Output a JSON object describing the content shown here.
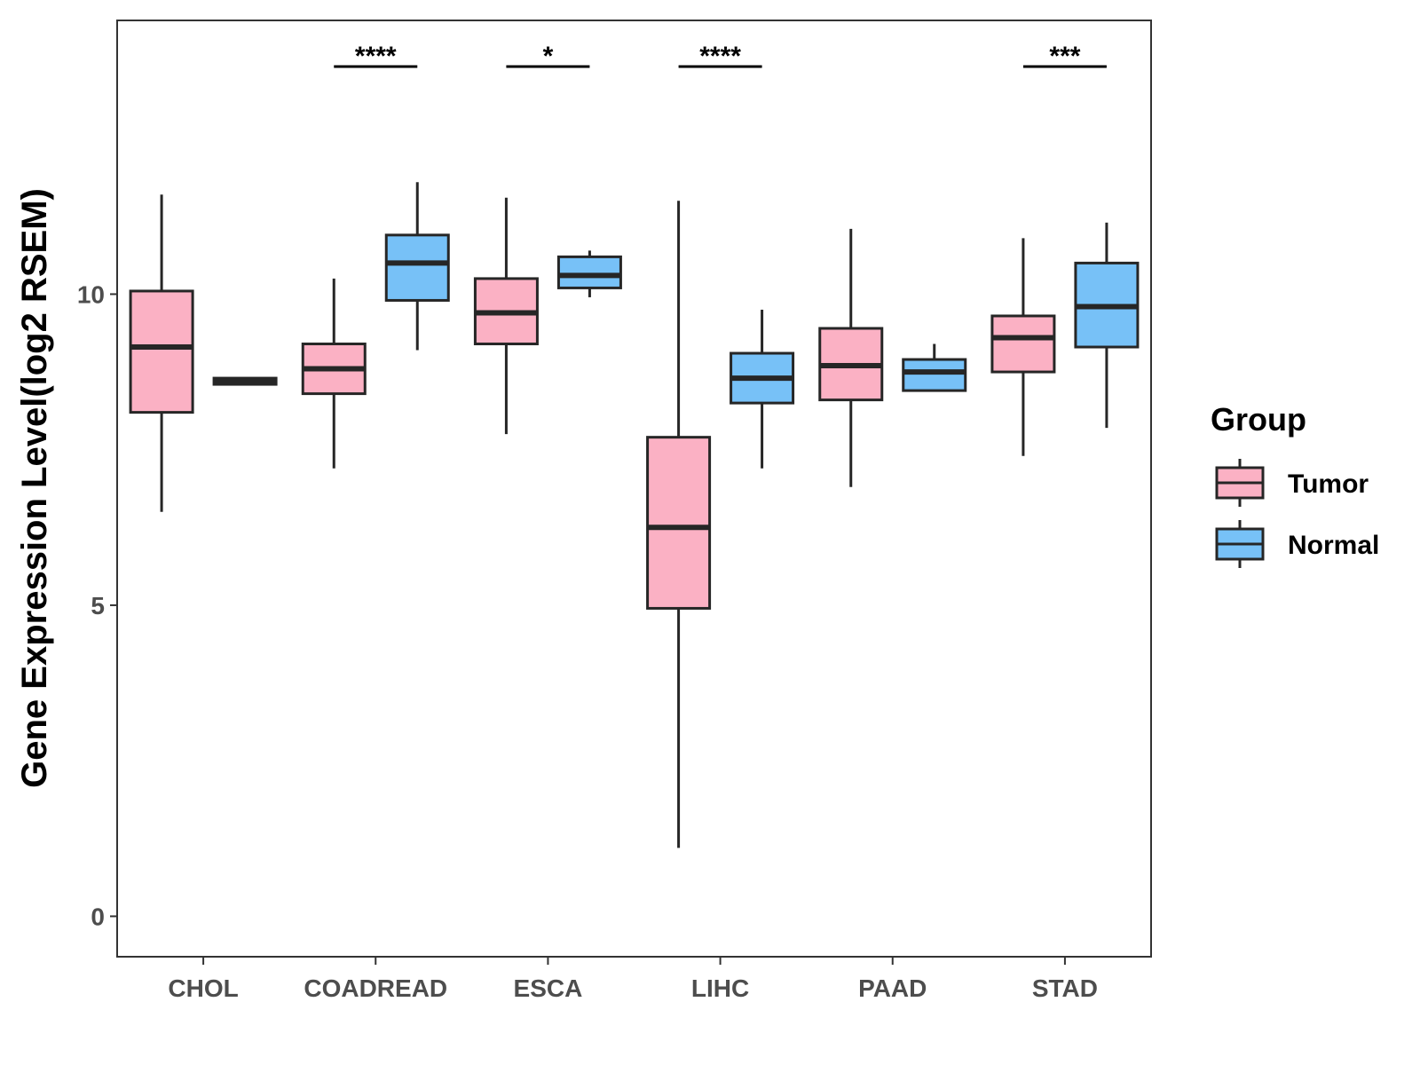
{
  "chart_data": {
    "type": "boxplot",
    "ylabel": "Gene Expression Level(log2 RSEM)",
    "xlabel": "",
    "ylim": [
      -0.65,
      14.4
    ],
    "yticks": [
      0,
      5,
      10
    ],
    "categories": [
      "CHOL",
      "COADREAD",
      "ESCA",
      "LIHC",
      "PAAD",
      "STAD"
    ],
    "legend": {
      "title": "Group",
      "position": "right",
      "items": [
        {
          "name": "Tumor",
          "color": "#FBB1C4"
        },
        {
          "name": "Normal",
          "color": "#77C1F7"
        }
      ]
    },
    "series": [
      {
        "name": "Tumor",
        "color": "#FBB1C4",
        "boxes": [
          {
            "category": "CHOL",
            "min": 6.5,
            "q1": 8.1,
            "median": 9.15,
            "q3": 10.05,
            "max": 11.6
          },
          {
            "category": "COADREAD",
            "min": 7.2,
            "q1": 8.4,
            "median": 8.8,
            "q3": 9.2,
            "max": 10.25
          },
          {
            "category": "ESCA",
            "min": 7.75,
            "q1": 9.2,
            "median": 9.7,
            "q3": 10.25,
            "max": 11.55
          },
          {
            "category": "LIHC",
            "min": 1.1,
            "q1": 4.95,
            "median": 6.25,
            "q3": 7.7,
            "max": 11.5
          },
          {
            "category": "PAAD",
            "min": 6.9,
            "q1": 8.3,
            "median": 8.85,
            "q3": 9.45,
            "max": 11.05
          },
          {
            "category": "STAD",
            "min": 7.4,
            "q1": 8.75,
            "median": 9.3,
            "q3": 9.65,
            "max": 10.9
          }
        ]
      },
      {
        "name": "Normal",
        "color": "#77C1F7",
        "boxes": [
          {
            "category": "CHOL",
            "min": 8.55,
            "q1": 8.55,
            "median": 8.6,
            "q3": 8.65,
            "max": 8.65
          },
          {
            "category": "COADREAD",
            "min": 9.1,
            "q1": 9.9,
            "median": 10.5,
            "q3": 10.95,
            "max": 11.8
          },
          {
            "category": "ESCA",
            "min": 9.95,
            "q1": 10.1,
            "median": 10.3,
            "q3": 10.6,
            "max": 10.7
          },
          {
            "category": "LIHC",
            "min": 7.2,
            "q1": 8.25,
            "median": 8.65,
            "q3": 9.05,
            "max": 9.75
          },
          {
            "category": "PAAD",
            "min": 8.45,
            "q1": 8.45,
            "median": 8.75,
            "q3": 8.95,
            "max": 9.2
          },
          {
            "category": "STAD",
            "min": 7.85,
            "q1": 9.15,
            "median": 9.8,
            "q3": 10.5,
            "max": 11.15
          }
        ]
      }
    ],
    "significance": [
      {
        "category": "COADREAD",
        "label": "****"
      },
      {
        "category": "ESCA",
        "label": "*"
      },
      {
        "category": "LIHC",
        "label": "****"
      },
      {
        "category": "STAD",
        "label": "***"
      }
    ]
  }
}
